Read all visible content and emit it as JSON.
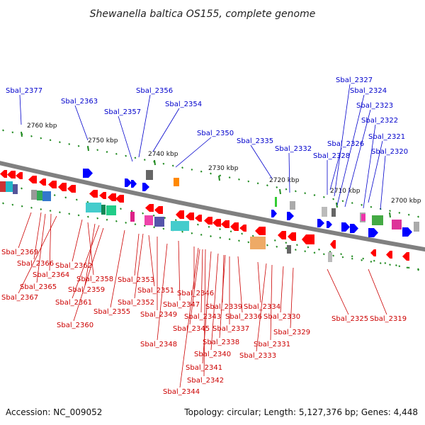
{
  "title": "Shewanella baltica OS155, complete genome",
  "accession_text": "Accession: NC_009052",
  "summary_text": "Topology: circular; Length: 5,127,376 bp; Genes: 4,448",
  "colors": {
    "backbone": "#808080",
    "forward_label": "#0000cc",
    "reverse_label": "#cc0000",
    "forward_gene": "#0000ff",
    "reverse_gene": "#ff0000",
    "tick": "#228b22"
  },
  "kbp_labels": [
    "2760 kbp",
    "2750 kbp",
    "2740 kbp",
    "2730 kbp",
    "2720 kbp",
    "2710 kbp",
    "2700 kbp"
  ],
  "forward_labels": [
    "Sbal_2377",
    "Sbal_2363",
    "Sbal_2356",
    "Sbal_2357",
    "Sbal_2354",
    "Sbal_2350",
    "Sbal_2335",
    "Sbal_2332",
    "Sbal_2328",
    "Sbal_2326",
    "Sbal_2327",
    "Sbal_2324",
    "Sbal_2323",
    "Sbal_2322",
    "Sbal_2321",
    "Sbal_2320"
  ],
  "reverse_labels": [
    "Sbal_2369",
    "Sbal_2366",
    "Sbal_2364",
    "Sbal_2365",
    "Sbal_2367",
    "Sbal_2362",
    "Sbal_2358",
    "Sbal_2359",
    "Sbal_2361",
    "Sbal_2360",
    "Sbal_2355",
    "Sbal_2353",
    "Sbal_2352",
    "Sbal_2351",
    "Sbal_2349",
    "Sbal_2348",
    "Sbal_2347",
    "Sbal_2346",
    "Sbal_2343",
    "Sbal_2345",
    "Sbal_2339",
    "Sbal_2337",
    "Sbal_2338",
    "Sbal_2340",
    "Sbal_2341",
    "Sbal_2342",
    "Sbal_2344",
    "Sbal_2336",
    "Sbal_2334",
    "Sbal_2333",
    "Sbal_2331",
    "Sbal_2330",
    "Sbal_2329",
    "Sbal_2325",
    "Sbal_2319"
  ]
}
